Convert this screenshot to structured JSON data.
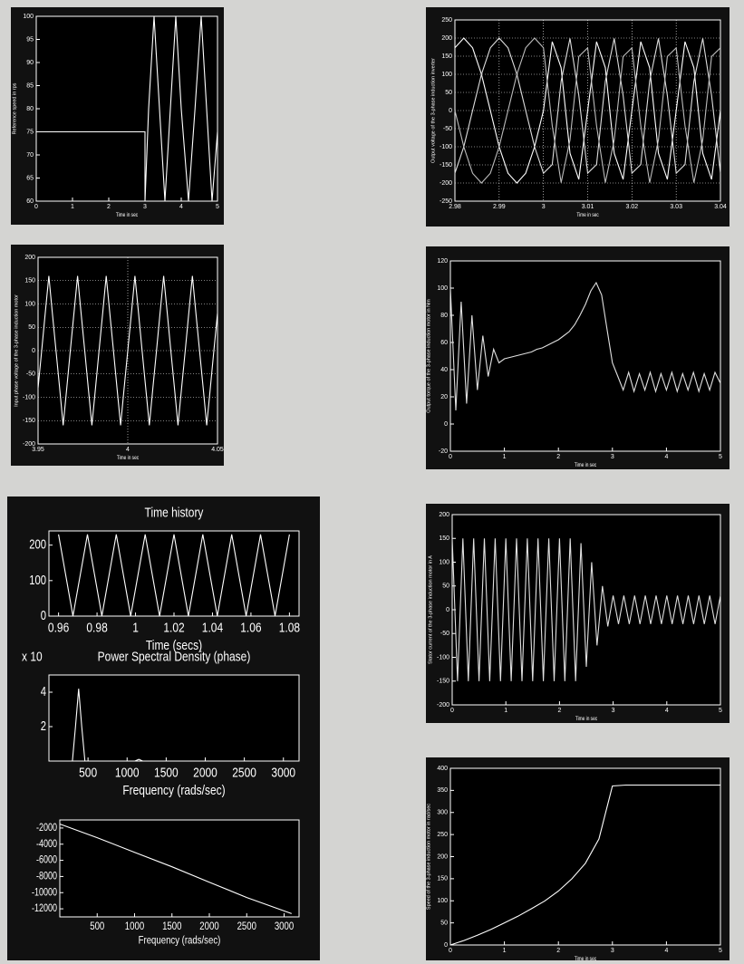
{
  "chart_data": [
    {
      "type": "line",
      "xlabel": "Time in sec",
      "ylabel": "Reference speed in rps",
      "grid": false,
      "xlim": [
        0,
        5
      ],
      "xticks": [
        0,
        1,
        2,
        3,
        4,
        5
      ],
      "ylim": [
        60,
        100
      ],
      "yticks": [
        60,
        65,
        70,
        75,
        80,
        85,
        90,
        95,
        100
      ],
      "x": [
        0,
        3,
        3,
        3.1,
        3.25,
        3.4,
        3.55,
        3.7,
        3.85,
        4.0,
        4.2,
        4.38,
        4.55,
        4.7,
        4.85,
        5
      ],
      "series": [
        {
          "color": "#ffffff",
          "values": [
            75,
            75,
            60,
            80,
            100,
            80,
            60,
            80,
            100,
            80,
            60,
            80,
            100,
            80,
            60,
            75
          ]
        }
      ]
    },
    {
      "type": "line",
      "xlabel": "Time in sec",
      "ylabel": "Output voltage of the 3-phase induction inverter",
      "grid": true,
      "xlim": [
        2.98,
        3.04
      ],
      "xticks": [
        2.98,
        2.99,
        3,
        3.01,
        3.02,
        3.03,
        3.04
      ],
      "ylim": [
        -250,
        250
      ],
      "yticks": [
        -250,
        -200,
        -150,
        -100,
        -50,
        0,
        50,
        100,
        150,
        200,
        250
      ],
      "x": [
        2.98,
        2.982,
        2.984,
        2.986,
        2.988,
        2.99,
        2.992,
        2.994,
        2.996,
        2.998,
        3,
        3.002,
        3.004,
        3.006,
        3.008,
        3.01,
        3.012,
        3.014,
        3.016,
        3.018,
        3.02,
        3.022,
        3.024,
        3.026,
        3.028,
        3.03,
        3.032,
        3.034,
        3.036,
        3.038,
        3.04
      ],
      "series": [
        {
          "color": "#ffffff",
          "values": [
            173,
            200,
            173,
            100,
            0,
            -100,
            -173,
            -200,
            -173,
            -100,
            0,
            190,
            118,
            -118,
            -190,
            0,
            190,
            118,
            -118,
            -190,
            0,
            190,
            118,
            -118,
            -190,
            0,
            190,
            118,
            -118,
            -190,
            0
          ]
        },
        {
          "color": "#dddddd",
          "values": [
            -173,
            -100,
            0,
            100,
            173,
            200,
            173,
            100,
            0,
            -100,
            -173,
            -149,
            81,
            199,
            42,
            -173,
            -149,
            81,
            199,
            42,
            -173,
            -149,
            81,
            199,
            42,
            -173,
            -149,
            81,
            199,
            42,
            -173
          ]
        },
        {
          "color": "#bbbbbb",
          "values": [
            0,
            -100,
            -173,
            -200,
            -173,
            -100,
            0,
            100,
            173,
            200,
            173,
            -42,
            -199,
            -81,
            149,
            173,
            -42,
            -199,
            -81,
            149,
            173,
            -42,
            -199,
            -81,
            149,
            173,
            -42,
            -199,
            -81,
            149,
            173
          ]
        }
      ]
    },
    {
      "type": "line",
      "xlabel": "Time in sec",
      "ylabel": "Input phase voltage of the 3-phase induction motor",
      "grid": true,
      "xlim": [
        3.95,
        4.05
      ],
      "xticks": [
        3.95,
        4,
        4.05
      ],
      "ylim": [
        -200,
        200
      ],
      "yticks": [
        -200,
        -150,
        -100,
        -50,
        0,
        50,
        100,
        150,
        200
      ],
      "x": [
        3.95,
        3.952,
        3.954,
        3.956,
        3.958,
        3.96,
        3.962,
        3.964,
        3.966,
        3.968,
        3.97,
        3.972,
        3.974,
        3.976,
        3.978,
        3.98,
        3.982,
        3.984,
        3.986,
        3.988,
        3.99,
        3.992,
        3.994,
        3.996,
        3.998,
        4,
        4.002,
        4.004,
        4.006,
        4.008,
        4.01,
        4.012,
        4.014,
        4.016,
        4.018,
        4.02,
        4.022,
        4.024,
        4.026,
        4.028,
        4.03,
        4.032,
        4.034,
        4.036,
        4.038,
        4.04,
        4.042,
        4.044,
        4.046,
        4.048,
        4.05
      ],
      "series": [
        {
          "color": "#ffffff",
          "values": [
            -80,
            0,
            80,
            160,
            80,
            0,
            -80,
            -160,
            -80,
            0,
            80,
            160,
            80,
            0,
            -80,
            -160,
            -80,
            0,
            80,
            160,
            80,
            0,
            -80,
            -160,
            -80,
            0,
            80,
            160,
            80,
            0,
            -80,
            -160,
            -80,
            0,
            80,
            160,
            80,
            0,
            -80,
            -160,
            -80,
            0,
            80,
            160,
            80,
            0,
            -80,
            -160,
            -80,
            0,
            80
          ]
        }
      ]
    },
    {
      "type": "line",
      "xlabel": "Time in sec",
      "ylabel": "Output torque of the 3-phase induction motor in Nm",
      "grid": false,
      "xlim": [
        0,
        5
      ],
      "xticks": [
        0,
        1,
        2,
        3,
        4,
        5
      ],
      "ylim": [
        -20,
        120
      ],
      "yticks": [
        -20,
        0,
        20,
        40,
        60,
        80,
        100,
        120
      ],
      "x": [
        0,
        0.1,
        0.2,
        0.3,
        0.4,
        0.5,
        0.6,
        0.7,
        0.8,
        0.9,
        1,
        1.1,
        1.2,
        1.3,
        1.4,
        1.5,
        1.6,
        1.7,
        1.8,
        1.9,
        2,
        2.1,
        2.2,
        2.3,
        2.4,
        2.5,
        2.6,
        2.7,
        2.8,
        2.9,
        3,
        3.1,
        3.2,
        3.3,
        3.4,
        3.5,
        3.6,
        3.7,
        3.8,
        3.9,
        4,
        4.1,
        4.2,
        4.3,
        4.4,
        4.5,
        4.6,
        4.7,
        4.8,
        4.9,
        5
      ],
      "series": [
        {
          "color": "#e0e0e0",
          "values": [
            100,
            10,
            90,
            15,
            80,
            25,
            65,
            35,
            55,
            45,
            48,
            49,
            50,
            51,
            52,
            53,
            55,
            56,
            58,
            60,
            62,
            65,
            68,
            73,
            80,
            88,
            98,
            104,
            95,
            70,
            45,
            35,
            25,
            38,
            24,
            37,
            25,
            38,
            24,
            37,
            25,
            38,
            24,
            37,
            25,
            38,
            24,
            37,
            25,
            38,
            30
          ]
        }
      ]
    },
    {
      "type": "line",
      "title": "Time history",
      "xlabel": "Time (secs)",
      "grid": false,
      "xlim": [
        0.955,
        1.085
      ],
      "xticks": [
        0.96,
        0.98,
        1,
        1.02,
        1.04,
        1.06,
        1.08
      ],
      "ylim": [
        0,
        240
      ],
      "yticks": [
        0,
        100,
        200
      ],
      "x": [
        0.96,
        0.9675,
        0.975,
        0.9825,
        0.99,
        0.9975,
        1.005,
        1.0125,
        1.02,
        1.0275,
        1.035,
        1.0425,
        1.05,
        1.0575,
        1.065,
        1.0725,
        1.08
      ],
      "series": [
        {
          "color": "#ffffff",
          "values": [
            230,
            0,
            230,
            0,
            230,
            0,
            230,
            0,
            230,
            0,
            230,
            0,
            230,
            0,
            230,
            0,
            230
          ]
        }
      ]
    },
    {
      "type": "line",
      "title": "Power Spectral Density (phase)",
      "annotation": "x 10",
      "xlabel": "Frequency (rads/sec)",
      "grid": false,
      "xlim": [
        0,
        3200
      ],
      "xticks": [
        500,
        1000,
        1500,
        2000,
        2500,
        3000
      ],
      "ylim": [
        0,
        5
      ],
      "yticks": [
        2,
        4
      ],
      "x": [
        0,
        300,
        340,
        380,
        420,
        460,
        1100,
        1150,
        1200,
        3200
      ],
      "series": [
        {
          "color": "#ffffff",
          "values": [
            0,
            0,
            2,
            4.2,
            2,
            0,
            0,
            0.1,
            0,
            0
          ]
        }
      ]
    },
    {
      "type": "line",
      "xlabel": "Frequency (rads/sec)",
      "grid": false,
      "xlim": [
        0,
        3200
      ],
      "xticks": [
        500,
        1000,
        1500,
        2000,
        2500,
        3000
      ],
      "ylim": [
        -13000,
        -1000
      ],
      "yticks": [
        -2000,
        -4000,
        -6000,
        -8000,
        -10000,
        -12000
      ],
      "x": [
        0,
        500,
        1000,
        1500,
        2000,
        2500,
        3100
      ],
      "series": [
        {
          "color": "#ffffff",
          "values": [
            -1500,
            -3200,
            -5000,
            -6800,
            -8700,
            -10600,
            -12600
          ]
        }
      ]
    },
    {
      "type": "line",
      "xlabel": "Time in sec",
      "ylabel": "Stator current of the 3-phase induction motor in A",
      "grid": false,
      "xlim": [
        0,
        5
      ],
      "xticks": [
        0,
        1,
        2,
        3,
        4,
        5
      ],
      "ylim": [
        -200,
        200
      ],
      "yticks": [
        -200,
        -150,
        -100,
        -50,
        0,
        50,
        100,
        150,
        200
      ],
      "x": [
        0,
        0.1,
        0.2,
        0.3,
        0.4,
        0.5,
        0.6,
        0.7,
        0.8,
        0.9,
        1,
        1.1,
        1.2,
        1.3,
        1.4,
        1.5,
        1.6,
        1.7,
        1.8,
        1.9,
        2,
        2.1,
        2.2,
        2.3,
        2.4,
        2.5,
        2.6,
        2.7,
        2.8,
        2.9,
        3,
        3.1,
        3.2,
        3.3,
        3.4,
        3.5,
        3.6,
        3.7,
        3.8,
        3.9,
        4,
        4.1,
        4.2,
        4.3,
        4.4,
        4.5,
        4.6,
        4.7,
        4.8,
        4.9,
        5
      ],
      "series": [
        {
          "color": "#e0e0e0",
          "values": [
            150,
            -150,
            150,
            -150,
            150,
            -150,
            150,
            -150,
            150,
            -150,
            150,
            -150,
            150,
            -150,
            150,
            -150,
            150,
            -150,
            150,
            -150,
            150,
            -150,
            150,
            -150,
            140,
            -120,
            100,
            -75,
            50,
            -35,
            30,
            -30,
            30,
            -30,
            30,
            -30,
            30,
            -30,
            30,
            -30,
            30,
            -30,
            30,
            -30,
            30,
            -30,
            30,
            -30,
            30,
            -30,
            30
          ]
        }
      ]
    },
    {
      "type": "line",
      "xlabel": "Time in sec",
      "ylabel": "Speed of the 3-phase induction motor in rad/sec",
      "grid": false,
      "xlim": [
        0,
        5
      ],
      "xticks": [
        0,
        1,
        2,
        3,
        4,
        5
      ],
      "ylim": [
        0,
        400
      ],
      "yticks": [
        0,
        50,
        100,
        150,
        200,
        250,
        300,
        350,
        400
      ],
      "x": [
        0,
        0.25,
        0.5,
        0.75,
        1,
        1.25,
        1.5,
        1.75,
        2,
        2.25,
        2.5,
        2.75,
        3,
        3.25,
        3.5,
        3.75,
        4,
        4.25,
        4.5,
        4.75,
        5
      ],
      "series": [
        {
          "color": "#ffffff",
          "values": [
            0,
            10,
            22,
            35,
            50,
            65,
            82,
            100,
            122,
            150,
            185,
            240,
            360,
            362,
            362,
            362,
            362,
            362,
            362,
            362,
            362
          ]
        }
      ]
    }
  ]
}
